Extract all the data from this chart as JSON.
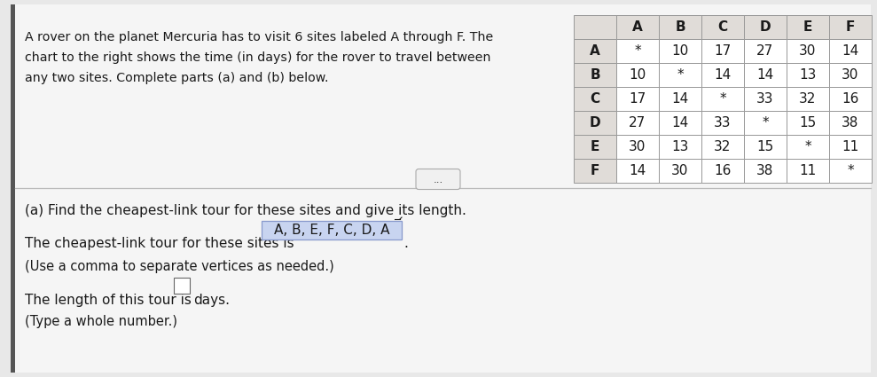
{
  "title_lines": [
    "A rover on the planet Mercuria has to visit 6 sites labeled A through F. The",
    "chart to the right shows the time (in days) for the rover to travel between",
    "any two sites. Complete parts (a) and (b) below."
  ],
  "table_headers": [
    "",
    "A",
    "B",
    "C",
    "D",
    "E",
    "F"
  ],
  "table_rows": [
    [
      "A",
      "*",
      "10",
      "17",
      "27",
      "30",
      "14"
    ],
    [
      "B",
      "10",
      "*",
      "14",
      "14",
      "13",
      "30"
    ],
    [
      "C",
      "17",
      "14",
      "*",
      "33",
      "32",
      "16"
    ],
    [
      "D",
      "27",
      "14",
      "33",
      "*",
      "15",
      "38"
    ],
    [
      "E",
      "30",
      "13",
      "32",
      "15",
      "*",
      "11"
    ],
    [
      "F",
      "14",
      "30",
      "16",
      "38",
      "11",
      "*"
    ]
  ],
  "part_a_label": "(a) Find the cheapest-link tour for these sites and give its length.",
  "tour_label": "The cheapest-link tour for these sites is",
  "tour_answer": "A, B, E, F, C, D, A",
  "tour_note": "(Use a comma to separate vertices as needed.)",
  "length_label": "The length of this tour is",
  "length_unit": "days.",
  "length_note": "(Type a whole number.)",
  "bg_color": "#e8e8e8",
  "top_bg": "#f5f5f5",
  "bottom_bg": "#f5f5f5",
  "table_header_bg": "#e0dcd8",
  "table_row_label_bg": "#e0dcd8",
  "table_cell_bg": "#ffffff",
  "border_color": "#999999",
  "text_color": "#1a1a1a",
  "highlight_bg": "#c8d4f0",
  "highlight_border": "#8899cc",
  "separator_color": "#bbbbbb",
  "left_bar_color": "#555555"
}
